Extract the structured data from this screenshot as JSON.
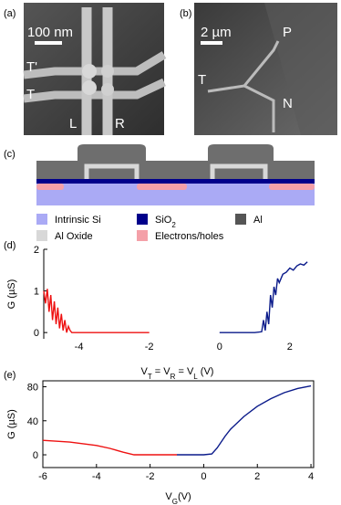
{
  "panels": {
    "a": {
      "label": "(a)",
      "scale_bar": "100 nm",
      "t_prime": "T'",
      "t": "T",
      "l": "L",
      "r": "R"
    },
    "b": {
      "label": "(b)",
      "scale_bar": "2 µm",
      "p": "P",
      "t": "T",
      "n": "N"
    },
    "c": {
      "label": "(c)",
      "legend": [
        {
          "name": [
            "Intrinsic Si"
          ],
          "color": "#aaaaf5"
        },
        {
          "name": [
            "SiO",
            "2"
          ],
          "color": "#00008b"
        },
        {
          "name": [
            "Al"
          ],
          "color": "#555555"
        },
        {
          "name": [
            "Al Oxide"
          ],
          "color": "#d8d8d8"
        },
        {
          "name": [
            "Electrons/holes"
          ],
          "color": "#f4a0a8"
        }
      ]
    },
    "d": {
      "label": "(d)"
    },
    "e": {
      "label": "(e)"
    }
  },
  "chart_data": [
    {
      "type": "line",
      "ylabel": "G (µS)",
      "xlabel": [
        "V",
        "T",
        " = V",
        "R",
        " = V",
        "L",
        " (V)"
      ],
      "xlim": [
        -5,
        2.6
      ],
      "ylim": [
        -0.15,
        2
      ],
      "xticks": [
        -4,
        -2,
        0,
        2
      ],
      "yticks": [
        0,
        1,
        2
      ],
      "box": false,
      "series": [
        {
          "color": "#ee1111",
          "x": [
            -5,
            -4.95,
            -4.9,
            -4.85,
            -4.8,
            -4.75,
            -4.7,
            -4.65,
            -4.6,
            -4.55,
            -4.5,
            -4.45,
            -4.4,
            -4.35,
            -4.3,
            -4.25,
            -4.2,
            -4.1,
            -3.5,
            -3,
            -2.5,
            -2
          ],
          "values": [
            1.0,
            0.7,
            1.05,
            0.5,
            0.9,
            0.3,
            0.75,
            0.2,
            0.6,
            0.1,
            0.45,
            0.05,
            0.3,
            0.0,
            0.15,
            0.05,
            0.0,
            0.0,
            0.0,
            0.0,
            0.0,
            0.0
          ]
        },
        {
          "color": "#0a1a8a",
          "x": [
            0,
            0.5,
            1,
            1.2,
            1.25,
            1.3,
            1.35,
            1.4,
            1.45,
            1.5,
            1.55,
            1.6,
            1.65,
            1.7,
            1.8,
            1.9,
            2.0,
            2.1,
            2.2,
            2.3,
            2.4,
            2.5
          ],
          "values": [
            0,
            0,
            0,
            0.02,
            0.3,
            0.05,
            0.5,
            0.2,
            0.9,
            0.6,
            1.1,
            0.9,
            1.3,
            1.2,
            1.4,
            1.45,
            1.55,
            1.5,
            1.6,
            1.65,
            1.62,
            1.7
          ]
        }
      ]
    },
    {
      "type": "line",
      "ylabel": "G (µS)",
      "xlabel": [
        "V",
        "G",
        "(V)"
      ],
      "xlim": [
        -6,
        4.1
      ],
      "ylim": [
        -15,
        87
      ],
      "xticks": [
        -6,
        -4,
        -2,
        0,
        2,
        4
      ],
      "yticks": [
        0,
        40,
        80
      ],
      "box": true,
      "series": [
        {
          "color": "#ee1111",
          "x": [
            -6,
            -5,
            -4,
            -3.5,
            -3,
            -2.6,
            -2,
            -1.5,
            -1
          ],
          "values": [
            17,
            15,
            11,
            7.5,
            3,
            0,
            0,
            0,
            0
          ]
        },
        {
          "color": "#0a1a8a",
          "x": [
            -1,
            0,
            0.3,
            0.5,
            0.8,
            1,
            1.5,
            2,
            2.5,
            3,
            3.5,
            4
          ],
          "values": [
            0,
            0,
            1,
            8,
            22,
            30,
            45,
            57,
            66,
            73,
            78,
            81
          ]
        }
      ]
    }
  ]
}
